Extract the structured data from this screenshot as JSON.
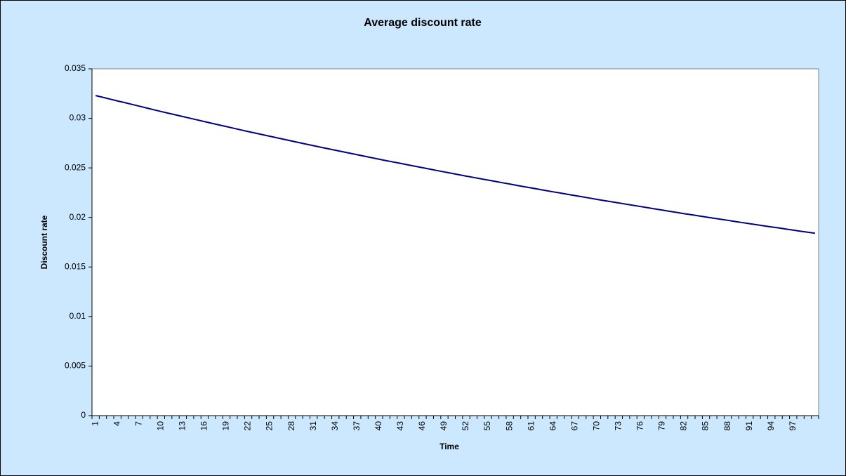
{
  "chart_data": {
    "type": "line",
    "title": "Average discount rate",
    "x_label": "Time",
    "y_label": "Discount rate",
    "categories": [
      1,
      null,
      null,
      4,
      null,
      null,
      7,
      null,
      null,
      10,
      null,
      null,
      13,
      null,
      null,
      16,
      null,
      null,
      19,
      null,
      null,
      22,
      null,
      null,
      25,
      null,
      null,
      28,
      null,
      null,
      31,
      null,
      null,
      34,
      null,
      null,
      37,
      null,
      null,
      40,
      null,
      null,
      43,
      null,
      null,
      46,
      null,
      null,
      49,
      null,
      null,
      52,
      null,
      null,
      55,
      null,
      null,
      58,
      null,
      null,
      61,
      null,
      null,
      64,
      null,
      null,
      67,
      null,
      null,
      70,
      null,
      null,
      73,
      null,
      null,
      76,
      null,
      null,
      79,
      null,
      null,
      82,
      null,
      null,
      85,
      null,
      null,
      88,
      null,
      null,
      91,
      null,
      null,
      94,
      null,
      null,
      97,
      null,
      null,
      null
    ],
    "series": [
      {
        "name": "Discount rate",
        "color": "#000080",
        "values": [
          0.0323,
          0.03212,
          0.03194,
          0.03176,
          0.03159,
          0.03141,
          0.03123,
          0.03105,
          0.03087,
          0.03069,
          0.03052,
          0.03035,
          0.03018,
          0.03001,
          0.02984,
          0.02967,
          0.0295,
          0.02933,
          0.02917,
          0.029,
          0.02883,
          0.02867,
          0.02851,
          0.02835,
          0.02819,
          0.02803,
          0.02787,
          0.02771,
          0.02755,
          0.02739,
          0.02724,
          0.02708,
          0.02693,
          0.02678,
          0.02663,
          0.02648,
          0.02633,
          0.02618,
          0.02603,
          0.02588,
          0.02573,
          0.02559,
          0.02545,
          0.0253,
          0.02516,
          0.02502,
          0.02488,
          0.02473,
          0.02459,
          0.02445,
          0.02431,
          0.02417,
          0.02404,
          0.0239,
          0.02377,
          0.02364,
          0.0235,
          0.02337,
          0.02323,
          0.0231,
          0.02297,
          0.02284,
          0.02271,
          0.02258,
          0.02246,
          0.02233,
          0.0222,
          0.02208,
          0.02195,
          0.02182,
          0.0217,
          0.02158,
          0.02146,
          0.02134,
          0.02122,
          0.0211,
          0.02098,
          0.02086,
          0.02074,
          0.02062,
          0.0205,
          0.02038,
          0.02027,
          0.02016,
          0.02004,
          0.01993,
          0.01982,
          0.01971,
          0.01959,
          0.01948,
          0.01937,
          0.01926,
          0.01915,
          0.01904,
          0.01894,
          0.01883,
          0.01872,
          0.01861,
          0.01851,
          0.0184
        ]
      }
    ],
    "ylim": [
      0,
      0.035
    ],
    "yticks": [
      0,
      0.005,
      0.01,
      0.015,
      0.02,
      0.025,
      0.03,
      0.035
    ],
    "grid": false
  }
}
